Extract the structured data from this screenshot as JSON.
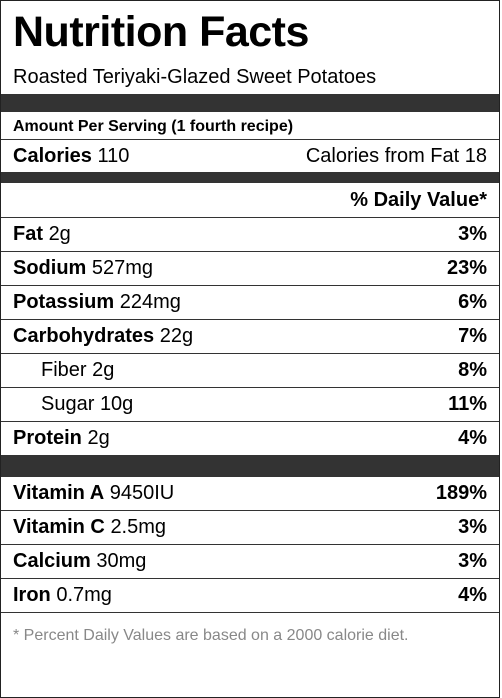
{
  "header": {
    "title": "Nutrition Facts",
    "subtitle": "Roasted Teriyaki-Glazed Sweet Potatoes"
  },
  "serving": "Amount Per Serving (1 fourth recipe)",
  "calories": {
    "label": "Calories",
    "value": "110",
    "fat_label": "Calories from Fat",
    "fat_value": "18"
  },
  "daily_value_header": "% Daily Value*",
  "nutrients": [
    {
      "name": "Fat",
      "amount": "2g",
      "percent": "3%"
    },
    {
      "name": "Sodium",
      "amount": "527mg",
      "percent": "23%"
    },
    {
      "name": "Potassium",
      "amount": "224mg",
      "percent": "6%"
    },
    {
      "name": "Carbohydrates",
      "amount": "22g",
      "percent": "7%"
    },
    {
      "name": "Fiber",
      "amount": "2g",
      "percent": "8%",
      "sub": true
    },
    {
      "name": "Sugar",
      "amount": "10g",
      "percent": "11%",
      "sub": true
    },
    {
      "name": "Protein",
      "amount": "2g",
      "percent": "4%"
    }
  ],
  "vitamins": [
    {
      "name": "Vitamin A",
      "amount": "9450IU",
      "percent": "189%"
    },
    {
      "name": "Vitamin C",
      "amount": "2.5mg",
      "percent": "3%"
    },
    {
      "name": "Calcium",
      "amount": "30mg",
      "percent": "3%"
    },
    {
      "name": "Iron",
      "amount": "0.7mg",
      "percent": "4%"
    }
  ],
  "footnote": "* Percent Daily Values are based on a 2000 calorie diet."
}
